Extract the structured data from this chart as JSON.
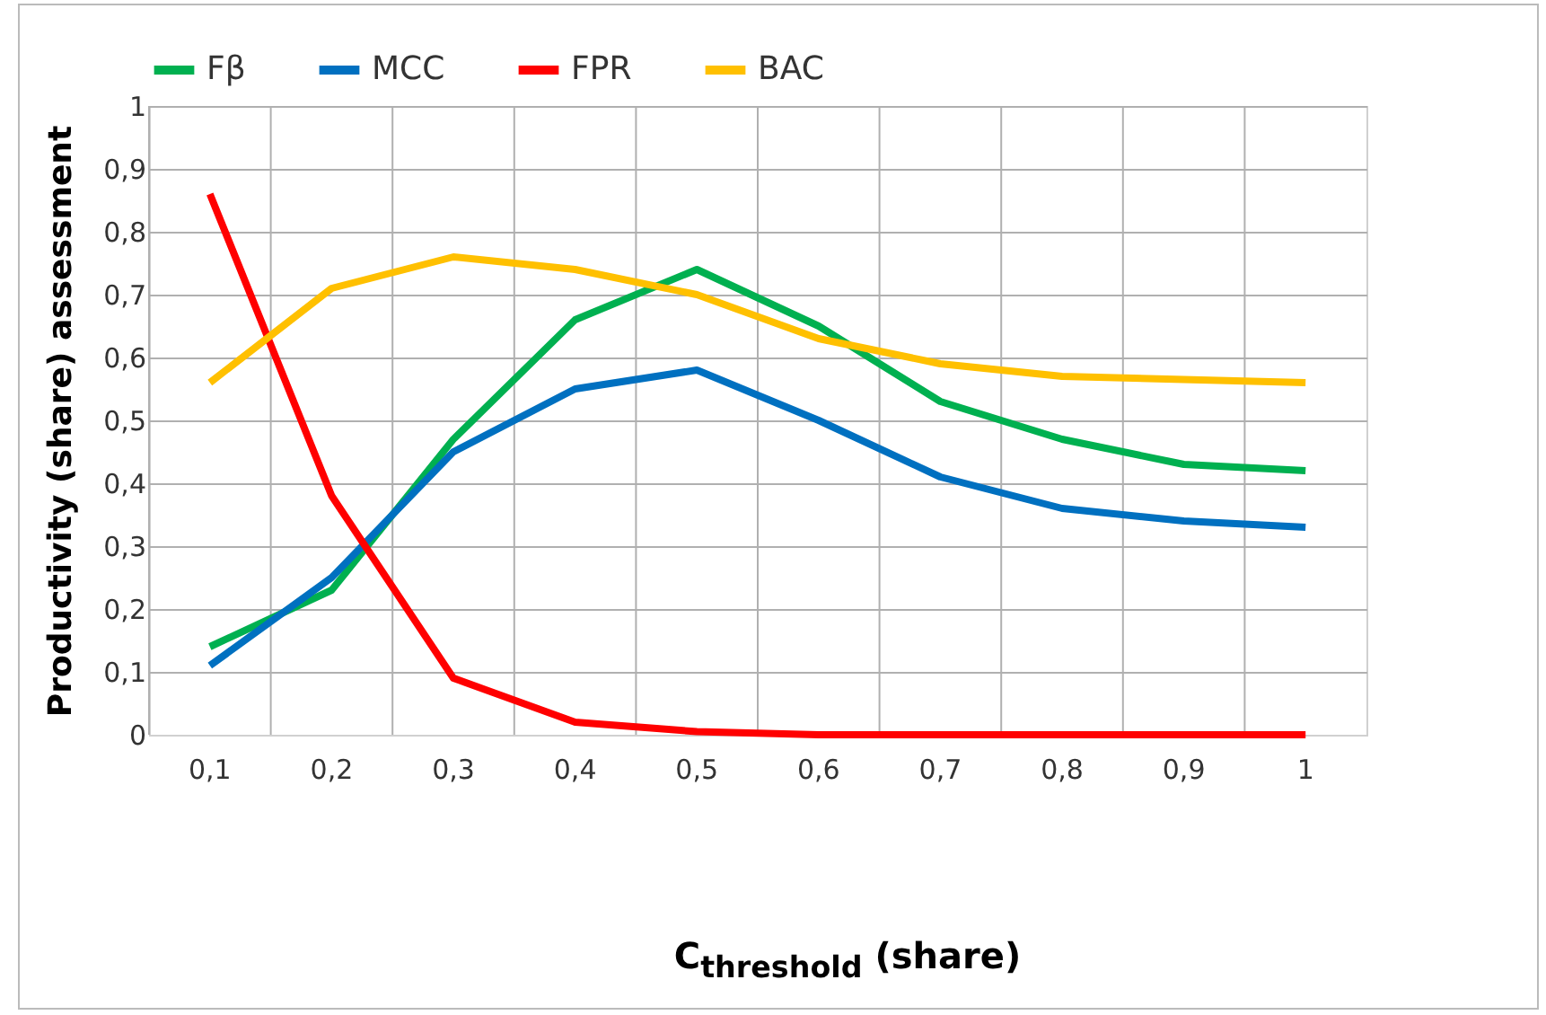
{
  "chart_data": {
    "type": "line",
    "xlabel": "C$_{threshold}$ (share)",
    "ylabel": "Productivity (share) assessment",
    "categories": [
      "0,1",
      "0,2",
      "0,3",
      "0,4",
      "0,5",
      "0,6",
      "0,7",
      "0,8",
      "0,9",
      "1"
    ],
    "series": [
      {
        "name": "Fβ",
        "color": "#00b050",
        "values": [
          0.14,
          0.23,
          0.47,
          0.66,
          0.74,
          0.65,
          0.53,
          0.47,
          0.43,
          0.42
        ]
      },
      {
        "name": "MCC",
        "color": "#0070c0",
        "values": [
          0.11,
          0.25,
          0.45,
          0.55,
          0.58,
          0.5,
          0.41,
          0.36,
          0.34,
          0.33
        ]
      },
      {
        "name": "FPR",
        "color": "#ff0000",
        "values": [
          0.86,
          0.38,
          0.09,
          0.02,
          0.005,
          0,
          0,
          0,
          0,
          0
        ]
      },
      {
        "name": "BAC",
        "color": "#ffc000",
        "values": [
          0.56,
          0.71,
          0.76,
          0.74,
          0.7,
          0.63,
          0.59,
          0.57,
          0.565,
          0.56
        ]
      }
    ],
    "ylim": [
      0,
      1
    ],
    "yticks": [
      0,
      {
        "value": 0.1,
        "label": "0,1"
      },
      {
        "value": 0.2,
        "label": "0,2"
      },
      {
        "value": 0.3,
        "label": "0,3"
      },
      {
        "value": 0.4,
        "label": "0,4"
      },
      {
        "value": 0.5,
        "label": "0,5"
      },
      {
        "value": 0.6,
        "label": "0,6"
      },
      {
        "value": 0.7,
        "label": "0,7"
      },
      {
        "value": 0.8,
        "label": "0,8"
      },
      {
        "value": 0.9,
        "label": "0,9"
      },
      1
    ],
    "grid": true,
    "legend": "top",
    "marker": "none",
    "line_style": "solid"
  }
}
